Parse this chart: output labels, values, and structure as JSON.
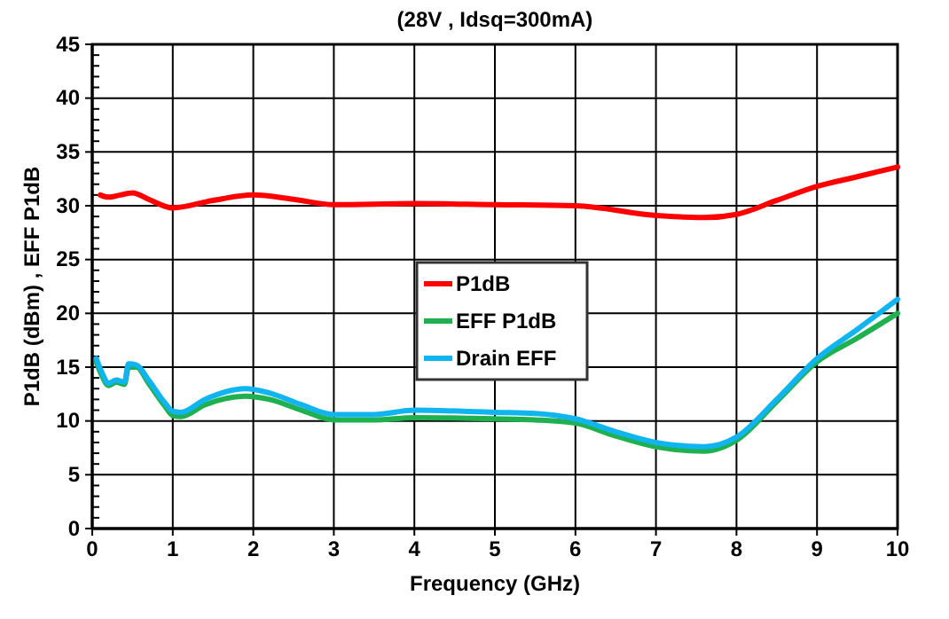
{
  "chart_data": {
    "type": "line",
    "title": "(28V , Idsq=300mA)",
    "xlabel": "Frequency (GHz)",
    "ylabel": "P1dB (dBm) , EFF P1dB",
    "xlim": [
      0,
      10
    ],
    "xticks": [
      0,
      1,
      2,
      3,
      4,
      5,
      6,
      7,
      8,
      9,
      10
    ],
    "ylim": [
      0,
      45
    ],
    "yticks": [
      0,
      5,
      10,
      15,
      20,
      25,
      30,
      35,
      40,
      45
    ],
    "grid": true,
    "legend": "center",
    "marker": "none",
    "line_style": "solid",
    "series": [
      {
        "name": "P1dB",
        "color": "#ff0000",
        "x": [
          0.1,
          0.2,
          0.35,
          0.5,
          0.7,
          1.0,
          1.5,
          2.0,
          2.5,
          3.0,
          4.0,
          5.0,
          6.0,
          7.0,
          7.6,
          8.0,
          8.5,
          9.0,
          9.5,
          10.0
        ],
        "values": [
          31.0,
          30.8,
          31.0,
          31.2,
          30.6,
          29.8,
          30.5,
          31.0,
          30.6,
          30.1,
          30.2,
          30.1,
          30.0,
          29.1,
          28.9,
          29.2,
          30.5,
          31.8,
          32.7,
          33.6
        ]
      },
      {
        "name": "EFF P1dB",
        "color": "#1fb04f",
        "x": [
          0.05,
          0.12,
          0.2,
          0.3,
          0.4,
          0.45,
          0.55,
          0.7,
          0.9,
          1.0,
          1.1,
          1.4,
          1.9,
          2.2,
          2.6,
          3.0,
          3.5,
          4.0,
          5.0,
          5.5,
          6.0,
          6.5,
          7.0,
          7.6,
          8.0,
          8.5,
          9.0,
          9.5,
          10.0
        ],
        "values": [
          15.5,
          14.2,
          13.3,
          13.6,
          13.4,
          15.0,
          15.0,
          13.5,
          11.4,
          10.5,
          10.4,
          11.5,
          12.3,
          12.0,
          11.0,
          10.1,
          10.1,
          10.3,
          10.2,
          10.1,
          9.8,
          8.6,
          7.6,
          7.2,
          8.2,
          11.8,
          15.5,
          17.7,
          20.0
        ]
      },
      {
        "name": "Drain EFF",
        "color": "#10b4ee",
        "x": [
          0.05,
          0.12,
          0.2,
          0.3,
          0.4,
          0.45,
          0.55,
          0.7,
          0.9,
          1.0,
          1.1,
          1.4,
          1.9,
          2.2,
          2.6,
          3.0,
          3.5,
          4.0,
          5.0,
          5.5,
          6.0,
          6.5,
          7.0,
          7.6,
          8.0,
          8.5,
          9.0,
          9.5,
          10.0
        ],
        "values": [
          15.8,
          14.5,
          13.5,
          13.8,
          13.6,
          15.3,
          15.2,
          13.8,
          11.7,
          10.9,
          10.8,
          12.0,
          13.0,
          12.6,
          11.5,
          10.6,
          10.6,
          11.0,
          10.8,
          10.7,
          10.2,
          9.0,
          8.0,
          7.6,
          8.5,
          12.0,
          15.8,
          18.5,
          21.3
        ]
      }
    ]
  }
}
